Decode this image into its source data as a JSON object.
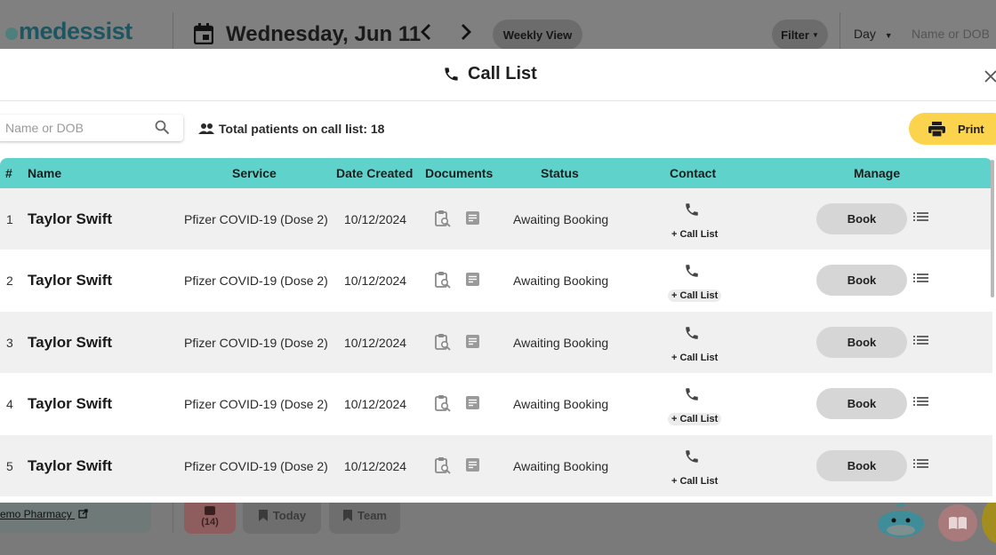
{
  "app": {
    "logo": "medessist",
    "date": "Wednesday, Jun 11",
    "view_button": "Weekly View",
    "filter_button": "Filter",
    "day_select": "Day",
    "search_placeholder": "Name or DOB",
    "pharmacy_link": "emo Pharmacy",
    "queue_count": "(14)",
    "today_button": "Today",
    "team_button": "Team"
  },
  "modal": {
    "title": "Call List",
    "search_placeholder": "Name or DOB",
    "total_label": "Total patients on call list: 18",
    "print_label": "Print",
    "columns": [
      "#",
      "Name",
      "Service",
      "Date Created",
      "Documents",
      "Status",
      "Contact",
      "Manage"
    ],
    "rows": [
      {
        "num": "1",
        "name": "Taylor Swift",
        "service": "Pfizer COVID-19 (Dose 2)",
        "date": "10/12/2024",
        "status": "Awaiting Booking",
        "contact_action": "+ Call List",
        "book_label": "Book"
      },
      {
        "num": "2",
        "name": "Taylor Swift",
        "service": "Pfizer COVID-19 (Dose 2)",
        "date": "10/12/2024",
        "status": "Awaiting Booking",
        "contact_action": "+ Call List",
        "book_label": "Book"
      },
      {
        "num": "3",
        "name": "Taylor Swift",
        "service": "Pfizer COVID-19 (Dose 2)",
        "date": "10/12/2024",
        "status": "Awaiting Booking",
        "contact_action": "+ Call List",
        "book_label": "Book"
      },
      {
        "num": "4",
        "name": "Taylor Swift",
        "service": "Pfizer COVID-19 (Dose 2)",
        "date": "10/12/2024",
        "status": "Awaiting Booking",
        "contact_action": "+ Call List",
        "book_label": "Book"
      },
      {
        "num": "5",
        "name": "Taylor Swift",
        "service": "Pfizer COVID-19 (Dose 2)",
        "date": "10/12/2024",
        "status": "Awaiting Booking",
        "contact_action": "+ Call List",
        "book_label": "Book"
      }
    ]
  },
  "icons": {
    "calendar": "calendar-icon",
    "prev": "chevron-left-icon",
    "next": "chevron-right-icon",
    "phone": "phone-icon",
    "close": "close-icon",
    "search": "search-icon",
    "people": "people-icon",
    "printer": "printer-icon",
    "document_search": "clipboard-search-icon",
    "note": "note-icon",
    "menu": "list-icon"
  },
  "colors": {
    "table_header": "#5fd3cb",
    "print_button": "#fcd34d",
    "row_shade": "#f0f0f0",
    "book_button": "#d6d6d6"
  }
}
